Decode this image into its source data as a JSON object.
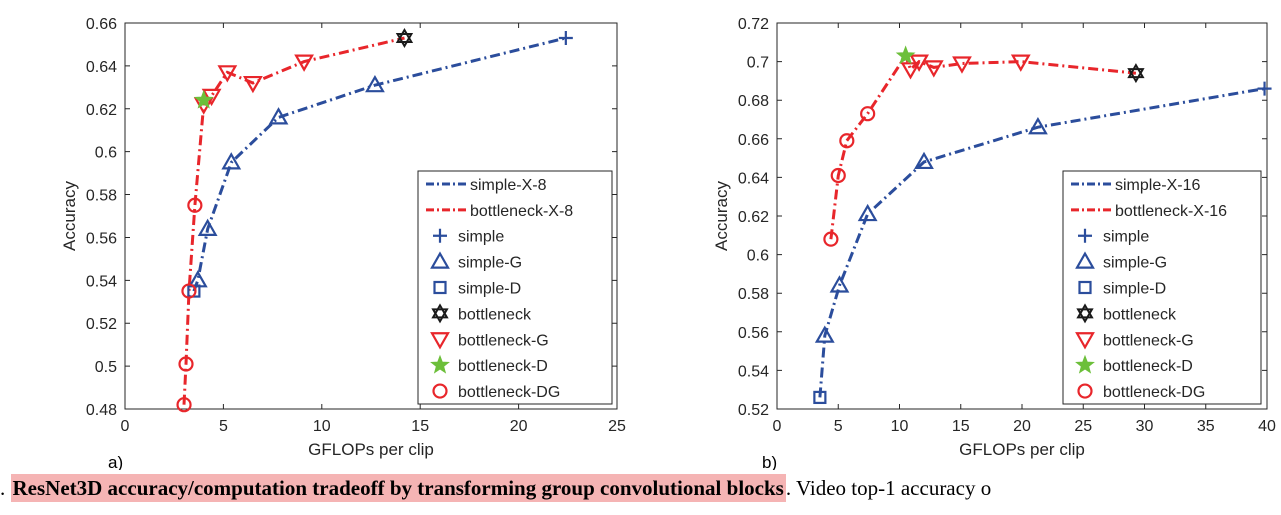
{
  "caption": {
    "lead": ".",
    "highlight": "ResNet3D accuracy/computation tradeoff by transforming group convolutional blocks",
    "rest": ". Video top-1 accuracy o"
  },
  "colors": {
    "blue": "#2b4d9c",
    "red": "#e8262b",
    "black": "#1a1a1a",
    "green": "#6cbf3a"
  },
  "chart_data": [
    {
      "type": "line",
      "panel_label": "a)",
      "title": "",
      "xlabel": "GFLOPs per clip",
      "ylabel": "Accuracy",
      "xlim": [
        0,
        25
      ],
      "ylim": [
        0.48,
        0.66
      ],
      "xticks": [
        0,
        5,
        10,
        15,
        20,
        25
      ],
      "yticks": [
        0.48,
        0.5,
        0.52,
        0.54,
        0.56,
        0.58,
        0.6,
        0.62,
        0.64,
        0.66
      ],
      "ytick_labels": [
        "0.48",
        "0.5",
        "0.52",
        "0.54",
        "0.56",
        "0.58",
        "0.6",
        "0.62",
        "0.64",
        "0.66"
      ],
      "grid": false,
      "legend_position": "bottom-right",
      "legend": [
        {
          "label": "simple-X-8",
          "symbol": "line",
          "color": "blue"
        },
        {
          "label": "bottleneck-X-8",
          "symbol": "line",
          "color": "red"
        },
        {
          "label": "simple",
          "symbol": "plus",
          "color": "blue"
        },
        {
          "label": "simple-G",
          "symbol": "triangle-up",
          "color": "blue"
        },
        {
          "label": "simple-D",
          "symbol": "square",
          "color": "blue"
        },
        {
          "label": "bottleneck",
          "symbol": "hexagram",
          "color": "black"
        },
        {
          "label": "bottleneck-G",
          "symbol": "triangle-down",
          "color": "red"
        },
        {
          "label": "bottleneck-D",
          "symbol": "star",
          "color": "green"
        },
        {
          "label": "bottleneck-DG",
          "symbol": "circle",
          "color": "red"
        }
      ],
      "series": [
        {
          "name": "simple-X-8",
          "color": "blue",
          "dash": true,
          "x": [
            3.5,
            3.7,
            4.2,
            5.4,
            7.8,
            12.7,
            22.4
          ],
          "y": [
            0.535,
            0.54,
            0.564,
            0.595,
            0.616,
            0.631,
            0.653
          ]
        },
        {
          "name": "bottleneck-X-8",
          "color": "red",
          "dash": true,
          "x": [
            3.0,
            3.1,
            3.25,
            3.55,
            4.0,
            4.4,
            5.2,
            6.5,
            9.1,
            14.2
          ],
          "y": [
            0.482,
            0.501,
            0.535,
            0.575,
            0.622,
            0.626,
            0.637,
            0.632,
            0.642,
            0.653
          ]
        }
      ],
      "markers": [
        {
          "name": "simple",
          "symbol": "plus",
          "color": "blue",
          "x": [
            22.4
          ],
          "y": [
            0.653
          ]
        },
        {
          "name": "simple-G",
          "symbol": "triangle-up",
          "color": "blue",
          "x": [
            3.7,
            4.2,
            5.4,
            7.8,
            12.7
          ],
          "y": [
            0.54,
            0.564,
            0.595,
            0.616,
            0.631
          ]
        },
        {
          "name": "simple-D",
          "symbol": "square",
          "color": "blue",
          "x": [
            3.5
          ],
          "y": [
            0.535
          ]
        },
        {
          "name": "bottleneck",
          "symbol": "hexagram",
          "color": "black",
          "x": [
            14.2
          ],
          "y": [
            0.653
          ]
        },
        {
          "name": "bottleneck-G",
          "symbol": "triangle-down",
          "color": "red",
          "x": [
            4.0,
            4.4,
            5.2,
            6.5,
            9.1
          ],
          "y": [
            0.622,
            0.626,
            0.637,
            0.632,
            0.642
          ]
        },
        {
          "name": "bottleneck-D",
          "symbol": "star",
          "color": "green",
          "x": [
            4.0
          ],
          "y": [
            0.624
          ]
        },
        {
          "name": "bottleneck-DG",
          "symbol": "circle",
          "color": "red",
          "x": [
            3.0,
            3.1,
            3.25,
            3.55
          ],
          "y": [
            0.482,
            0.501,
            0.535,
            0.575
          ]
        }
      ]
    },
    {
      "type": "line",
      "panel_label": "b)",
      "title": "",
      "xlabel": "GFLOPs per clip",
      "ylabel": "Accuracy",
      "xlim": [
        0,
        40
      ],
      "ylim": [
        0.52,
        0.72
      ],
      "xticks": [
        0,
        5,
        10,
        15,
        20,
        25,
        30,
        35,
        40
      ],
      "yticks": [
        0.52,
        0.54,
        0.56,
        0.58,
        0.6,
        0.62,
        0.64,
        0.66,
        0.68,
        0.7,
        0.72
      ],
      "ytick_labels": [
        "0.52",
        "0.54",
        "0.56",
        "0.58",
        "0.6",
        "0.62",
        "0.64",
        "0.66",
        "0.68",
        "0.7",
        "0.72"
      ],
      "grid": false,
      "legend_position": "bottom-right",
      "legend": [
        {
          "label": "simple-X-16",
          "symbol": "line",
          "color": "blue"
        },
        {
          "label": "bottleneck-X-16",
          "symbol": "line",
          "color": "red"
        },
        {
          "label": "simple",
          "symbol": "plus",
          "color": "blue"
        },
        {
          "label": "simple-G",
          "symbol": "triangle-up",
          "color": "blue"
        },
        {
          "label": "simple-D",
          "symbol": "square",
          "color": "blue"
        },
        {
          "label": "bottleneck",
          "symbol": "hexagram",
          "color": "black"
        },
        {
          "label": "bottleneck-G",
          "symbol": "triangle-down",
          "color": "red"
        },
        {
          "label": "bottleneck-D",
          "symbol": "star",
          "color": "green"
        },
        {
          "label": "bottleneck-DG",
          "symbol": "circle",
          "color": "red"
        }
      ],
      "series": [
        {
          "name": "simple-X-16",
          "color": "blue",
          "dash": true,
          "x": [
            3.5,
            3.9,
            5.1,
            7.4,
            12.0,
            21.3,
            39.8
          ],
          "y": [
            0.526,
            0.558,
            0.584,
            0.621,
            0.648,
            0.666,
            0.686
          ]
        },
        {
          "name": "bottleneck-X-16",
          "color": "red",
          "dash": true,
          "x": [
            4.4,
            5.0,
            5.7,
            7.4,
            10.5,
            10.9,
            11.6,
            12.8,
            15.1,
            19.9,
            29.3
          ],
          "y": [
            0.608,
            0.641,
            0.659,
            0.673,
            0.703,
            0.696,
            0.7,
            0.697,
            0.699,
            0.7,
            0.694
          ]
        }
      ],
      "markers": [
        {
          "name": "simple",
          "symbol": "plus",
          "color": "blue",
          "x": [
            39.8
          ],
          "y": [
            0.686
          ]
        },
        {
          "name": "simple-G",
          "symbol": "triangle-up",
          "color": "blue",
          "x": [
            3.9,
            5.1,
            7.4,
            12.0,
            21.3
          ],
          "y": [
            0.558,
            0.584,
            0.621,
            0.648,
            0.666
          ]
        },
        {
          "name": "simple-D",
          "symbol": "square",
          "color": "blue",
          "x": [
            3.5
          ],
          "y": [
            0.526
          ]
        },
        {
          "name": "bottleneck",
          "symbol": "hexagram",
          "color": "black",
          "x": [
            29.3
          ],
          "y": [
            0.694
          ]
        },
        {
          "name": "bottleneck-G",
          "symbol": "triangle-down",
          "color": "red",
          "x": [
            10.9,
            11.6,
            12.8,
            15.1,
            19.9
          ],
          "y": [
            0.696,
            0.7,
            0.697,
            0.699,
            0.7
          ]
        },
        {
          "name": "bottleneck-D",
          "symbol": "star",
          "color": "green",
          "x": [
            10.5
          ],
          "y": [
            0.703
          ]
        },
        {
          "name": "bottleneck-DG",
          "symbol": "circle",
          "color": "red",
          "x": [
            4.4,
            5.0,
            5.7,
            7.4
          ],
          "y": [
            0.608,
            0.641,
            0.659,
            0.673
          ]
        }
      ]
    }
  ]
}
